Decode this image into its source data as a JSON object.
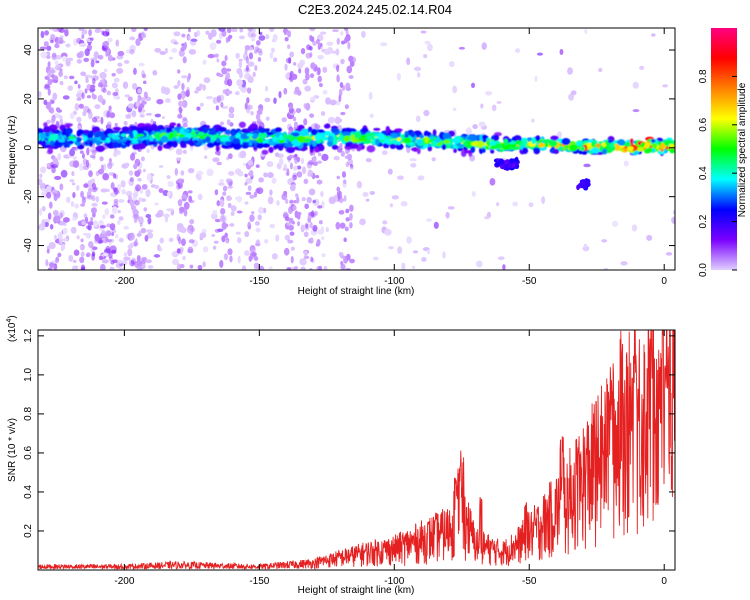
{
  "title": "C2E3.2024.245.02.14.R04",
  "chart_data": [
    {
      "type": "heatmap",
      "xlabel": "Height of straight line (km)",
      "ylabel": "Frequency (Hz)",
      "xlim": [
        -232,
        4
      ],
      "ylim": [
        -50,
        49
      ],
      "xticks": [
        -200,
        -150,
        -100,
        -50,
        0
      ],
      "xtick_labels": [
        "-200",
        "-150",
        "-100",
        "-50",
        "0"
      ],
      "yticks": [
        -40,
        -20,
        0,
        20,
        40
      ],
      "ytick_labels": [
        "-40",
        "-20",
        "0",
        "20",
        "40"
      ],
      "grid": false,
      "colorbar": {
        "label": "Normalized spectral amplitude",
        "range": [
          0,
          1
        ],
        "ticks": [
          0.0,
          0.2,
          0.4,
          0.6,
          0.8
        ],
        "tick_labels": [
          "0.0",
          "0.2",
          "0.4",
          "0.6",
          "0.8"
        ],
        "colormap": [
          "#e0d0ff",
          "#7a00ff",
          "#0000ff",
          "#00ffff",
          "#00ff00",
          "#ffff00",
          "#ff8000",
          "#ff0000",
          "#ff0080"
        ]
      },
      "ridge": {
        "x": [
          -232,
          -220,
          -210,
          -200,
          -190,
          -180,
          -170,
          -160,
          -150,
          -140,
          -130,
          -120,
          -110,
          -100,
          -90,
          -80,
          -70,
          -60,
          -50,
          -40,
          -30,
          -20,
          -10,
          0,
          4
        ],
        "y": [
          4,
          4,
          3.5,
          4,
          4.5,
          5,
          4.5,
          4,
          4,
          3.5,
          4,
          4.5,
          4,
          3.5,
          3,
          2.5,
          2,
          1,
          1.5,
          1,
          0.5,
          0.5,
          0.5,
          0.5,
          0.5
        ],
        "amplitude": [
          0.3,
          0.35,
          0.3,
          0.35,
          0.4,
          0.45,
          0.4,
          0.4,
          0.4,
          0.45,
          0.5,
          0.5,
          0.5,
          0.5,
          0.5,
          0.5,
          0.5,
          0.55,
          0.6,
          0.6,
          0.6,
          0.7,
          0.8,
          0.85,
          0.85
        ]
      },
      "side_band": {
        "x": [
          -62,
          -58,
          -54
        ],
        "y": [
          -6,
          -7,
          -6
        ]
      },
      "dip": {
        "x": [
          -32,
          -28
        ],
        "y": [
          -15,
          -15
        ]
      }
    },
    {
      "type": "line",
      "xlabel": "Height of straight line (km)",
      "ylabel": "SNR (10 * v/v)",
      "y_multiplier": "(x10",
      "y_multiplier_exp": "4",
      "y_multiplier_close": ")",
      "xlim": [
        -232,
        4
      ],
      "ylim": [
        0,
        1.23
      ],
      "xticks": [
        -200,
        -150,
        -100,
        -50,
        0
      ],
      "xtick_labels": [
        "-200",
        "-150",
        "-100",
        "-50",
        "0"
      ],
      "yticks": [
        0.2,
        0.4,
        0.6,
        0.8,
        1.0,
        1.2
      ],
      "ytick_labels": [
        "0.2",
        "0.4",
        "0.6",
        "0.8",
        "1.0",
        "1.2"
      ],
      "grid": false,
      "series_color": "#e52020",
      "envelope": {
        "x": [
          -232,
          -200,
          -180,
          -150,
          -130,
          -120,
          -110,
          -100,
          -90,
          -80,
          -76,
          -74,
          -70,
          -60,
          -55,
          -50,
          -45,
          -40,
          -35,
          -30,
          -25,
          -20,
          -15,
          -10,
          -5,
          0,
          4
        ],
        "y": [
          0.02,
          0.02,
          0.03,
          0.02,
          0.04,
          0.07,
          0.1,
          0.12,
          0.17,
          0.22,
          0.36,
          0.3,
          0.15,
          0.1,
          0.14,
          0.2,
          0.26,
          0.34,
          0.42,
          0.52,
          0.6,
          0.7,
          0.8,
          0.85,
          0.9,
          0.96,
          0.95
        ]
      },
      "peaks": {
        "x": [
          -77,
          -75,
          -68,
          -51,
          -38,
          -32,
          -25,
          -20,
          -16,
          -11,
          -5,
          -1,
          1
        ],
        "y": [
          0.48,
          0.62,
          0.38,
          0.35,
          0.7,
          0.65,
          0.72,
          0.95,
          1.23,
          1.07,
          1.15,
          1.13,
          1.08
        ]
      }
    }
  ]
}
